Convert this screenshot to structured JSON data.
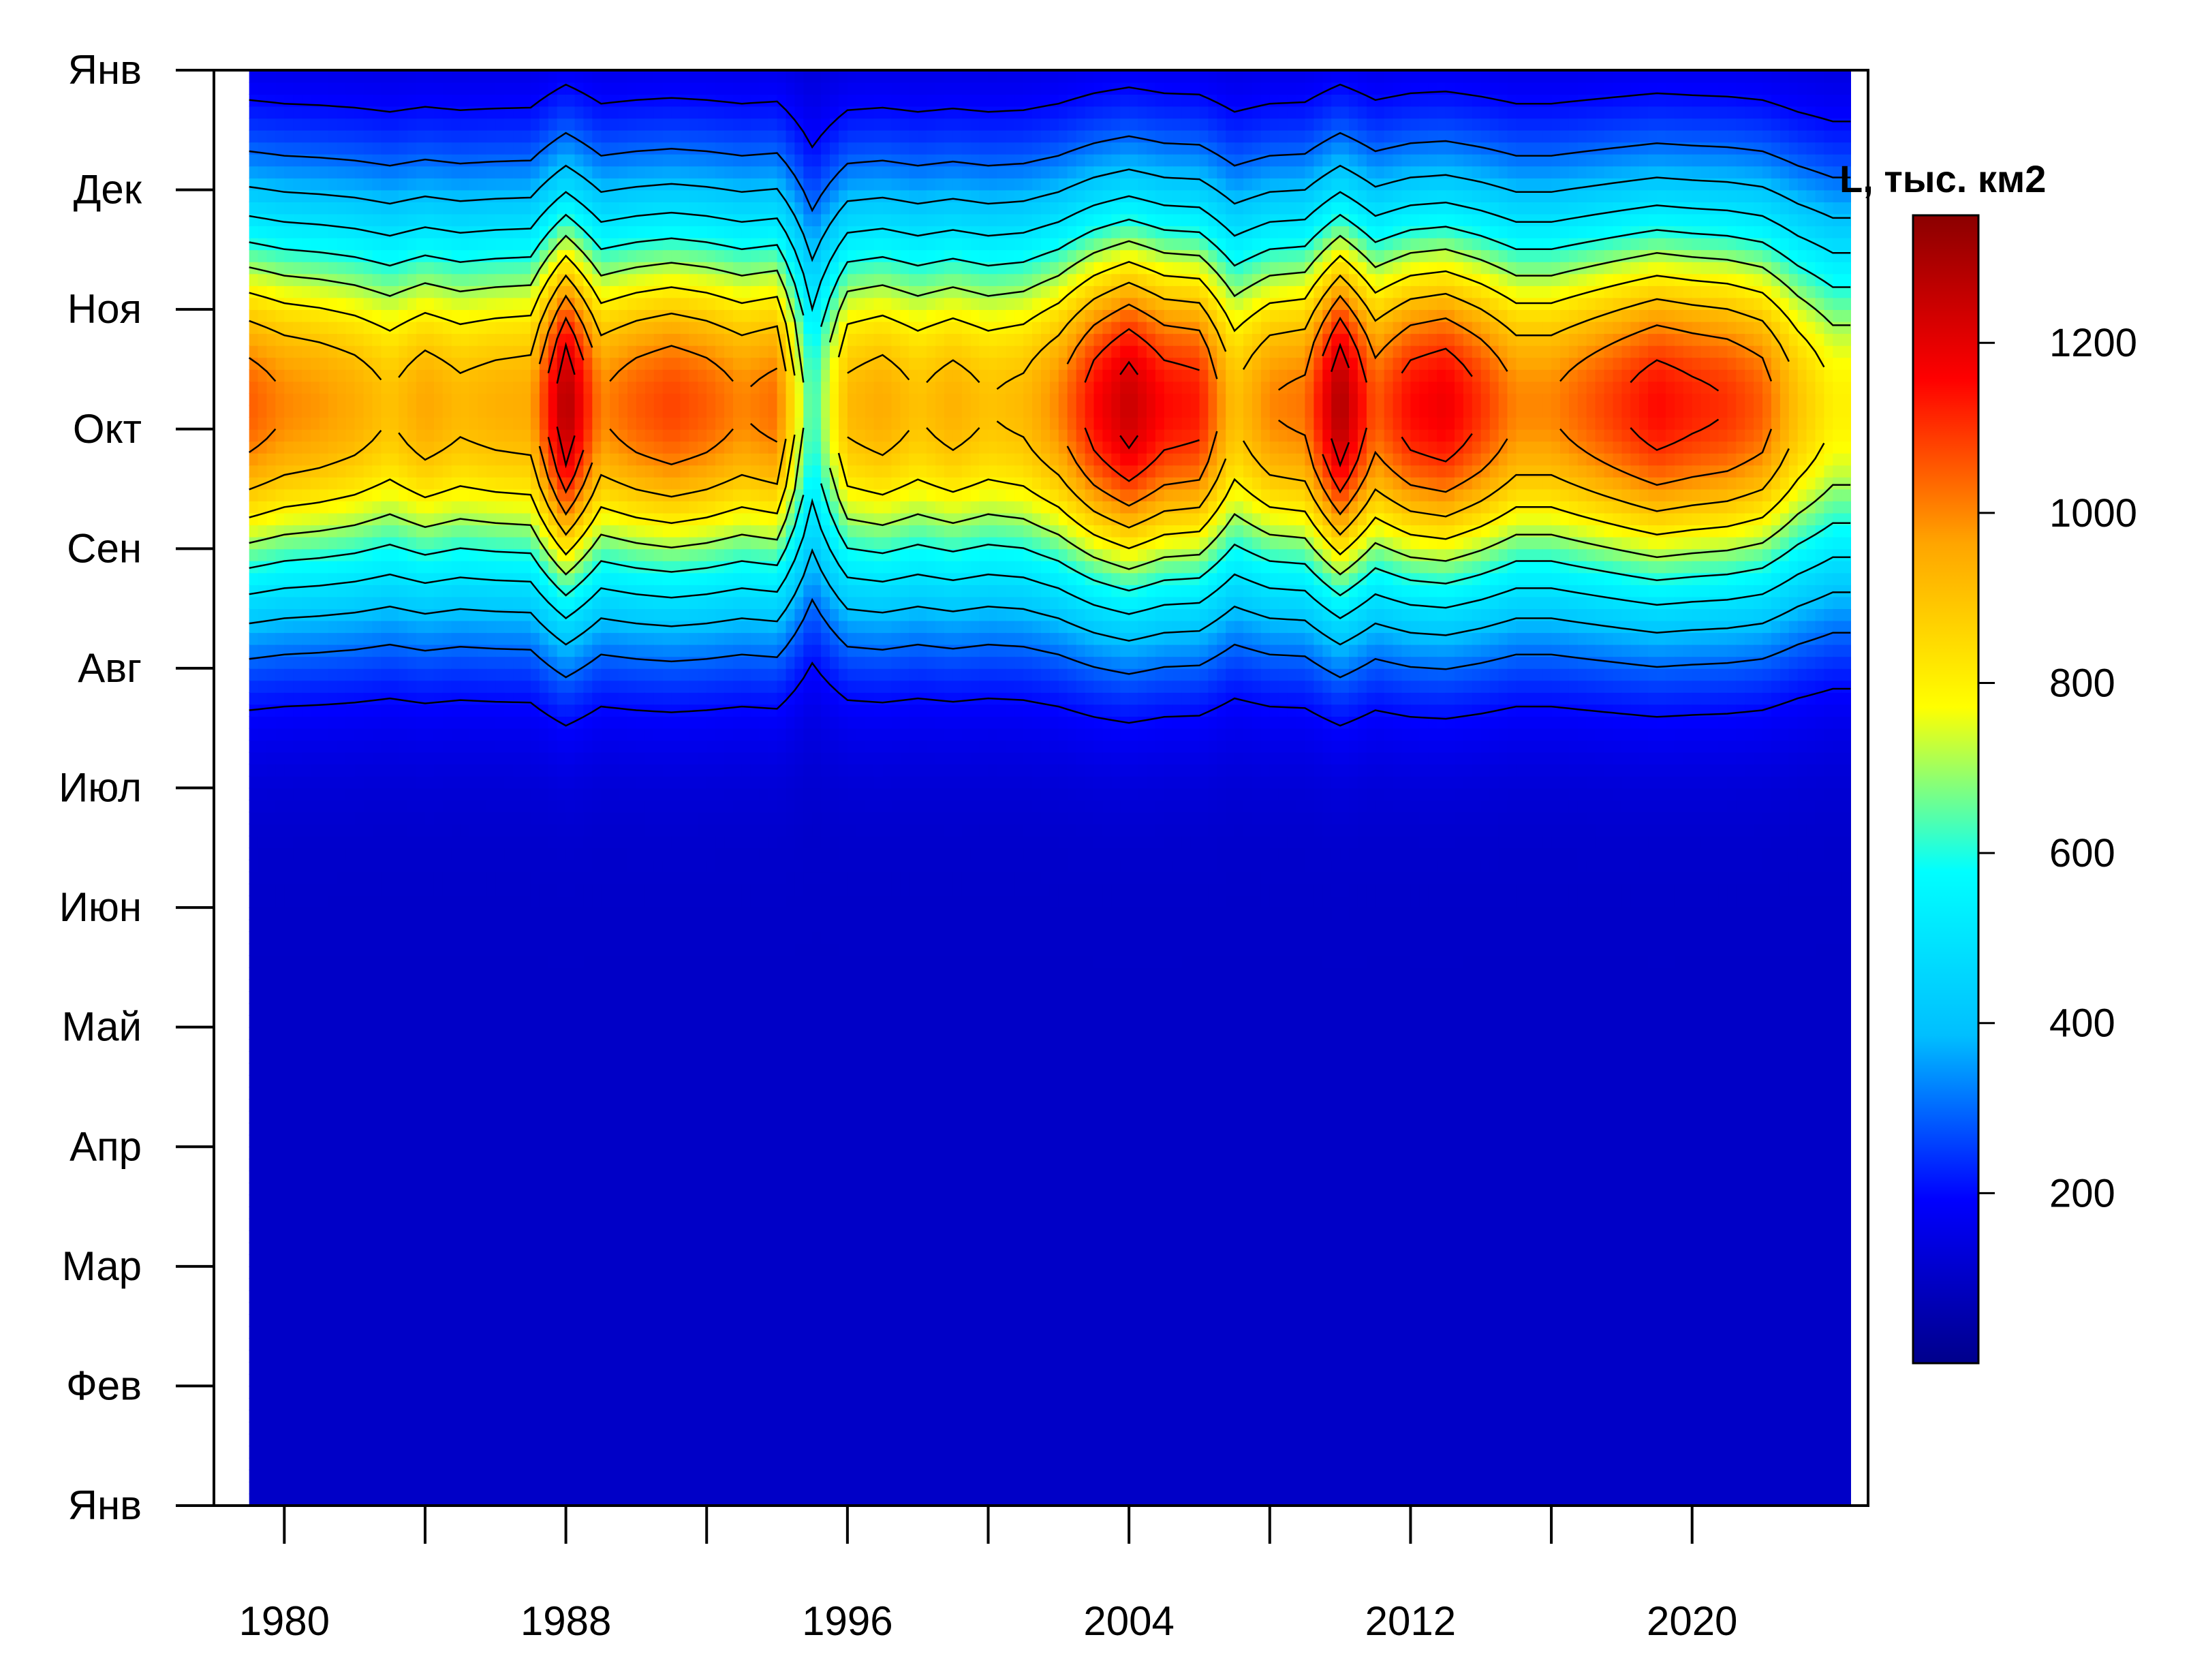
{
  "chart_data": {
    "type": "heatmap",
    "title": "",
    "xlabel": "",
    "ylabel": "",
    "x_ticks": [
      1980,
      1988,
      1996,
      2004,
      2012,
      2020
    ],
    "x_minor_ticks": [
      1980,
      1984,
      1988,
      1992,
      1996,
      2000,
      2004,
      2008,
      2012,
      2016,
      2020
    ],
    "xlim": [
      1978,
      2025
    ],
    "y_ticks": [
      "Янв",
      "Фев",
      "Мар",
      "Апр",
      "Май",
      "Июн",
      "Июл",
      "Авг",
      "Сен",
      "Окт",
      "Ноя",
      "Дек",
      "Янв"
    ],
    "ylim_months": [
      0,
      12
    ],
    "data_x_range": [
      1979,
      2024.5
    ],
    "colorbar": {
      "label": "L, тыс. км2",
      "ticks": [
        200,
        400,
        600,
        800,
        1000,
        1200
      ],
      "range": [
        0,
        1350
      ]
    },
    "years": [
      1979,
      1980,
      1981,
      1982,
      1983,
      1984,
      1985,
      1986,
      1987,
      1988,
      1989,
      1990,
      1991,
      1992,
      1993,
      1994,
      1995,
      1996,
      1997,
      1998,
      1999,
      2000,
      2001,
      2002,
      2003,
      2004,
      2005,
      2006,
      2007,
      2008,
      2009,
      2010,
      2011,
      2012,
      2013,
      2014,
      2015,
      2016,
      2017,
      2018,
      2019,
      2020,
      2021,
      2022,
      2023,
      2024
    ],
    "annual_peak_values": [
      1050,
      1000,
      980,
      950,
      900,
      960,
      920,
      940,
      950,
      1300,
      1000,
      1050,
      1080,
      1050,
      1000,
      1030,
      600,
      920,
      950,
      900,
      940,
      900,
      920,
      1000,
      1150,
      1250,
      1150,
      1130,
      900,
      1000,
      1020,
      1300,
      1050,
      1150,
      1180,
      1100,
      1000,
      1000,
      1050,
      1100,
      1150,
      1120,
      1100,
      1050,
      900,
      800
    ],
    "peak_month": 9.2,
    "season_width_months": 1.7,
    "winter_level": 100,
    "colormap": [
      "#00008B",
      "#0000FF",
      "#00BFFF",
      "#00FFFF",
      "#FFFF00",
      "#FFA500",
      "#FF0000",
      "#8B0000"
    ],
    "contour_levels": [
      100,
      200,
      300,
      400,
      500,
      600,
      700,
      800,
      900,
      1000,
      1100,
      1200
    ]
  }
}
